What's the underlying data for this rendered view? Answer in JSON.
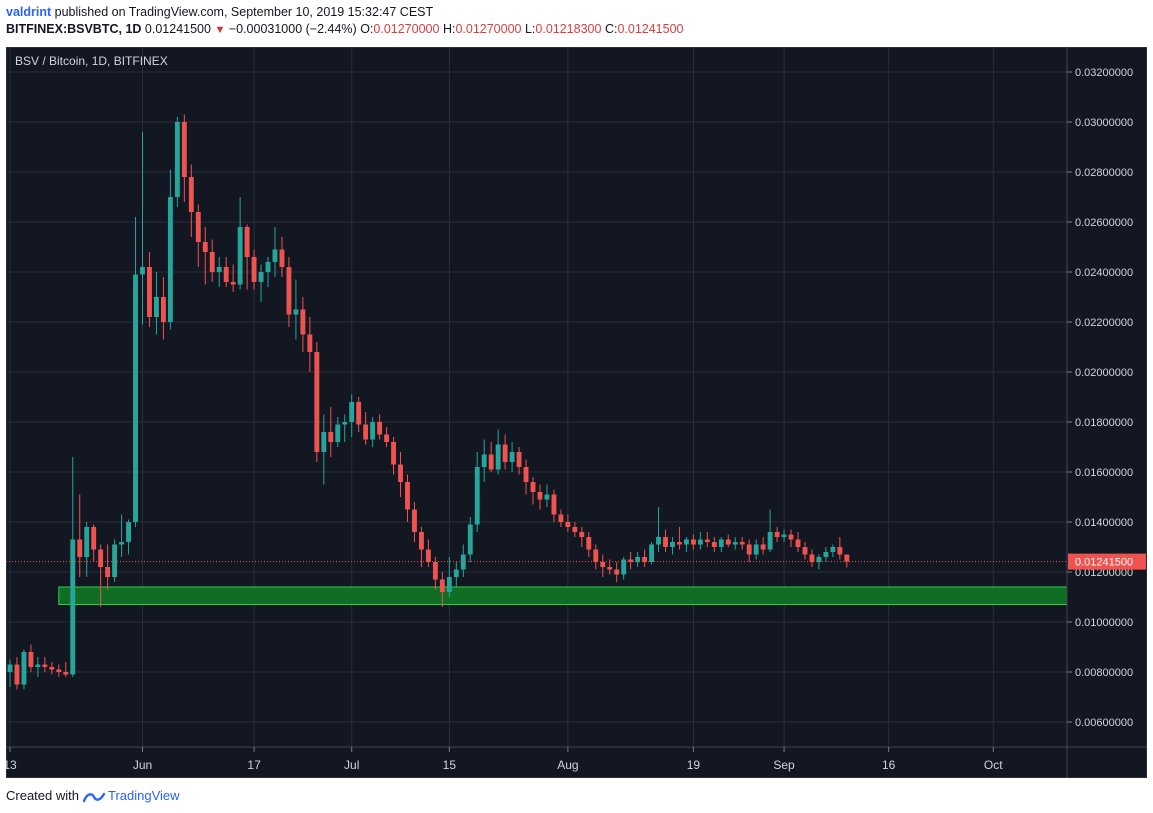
{
  "header": {
    "username": "valdrint",
    "published_text": "published on TradingView.com, September 10, 2019 15:32:47 CEST",
    "symbol": "BITFINEX:BSVBTC, 1D",
    "last": "0.01241500",
    "change": "−0.00031000 (−2.44%)",
    "o_label": "O:",
    "o_value": "0.01270000",
    "h_label": "H:",
    "h_value": "0.01270000",
    "l_label": "L:",
    "l_value": "0.01218300",
    "c_label": "C:",
    "c_value": "0.01241500"
  },
  "footer": {
    "created_with": "Created with",
    "brand": "TradingView"
  },
  "chart_data": {
    "type": "candlestick",
    "title": "BSV / Bitcoin, 1D, BITFINEX",
    "current_price_label": "0.01241500",
    "current_price": 0.012415,
    "ylim": [
      0.005,
      0.033
    ],
    "y_ticks": [
      {
        "value": 0.032,
        "label": "0.03200000"
      },
      {
        "value": 0.03,
        "label": "0.03000000"
      },
      {
        "value": 0.028,
        "label": "0.02800000"
      },
      {
        "value": 0.026,
        "label": "0.02600000"
      },
      {
        "value": 0.024,
        "label": "0.02400000"
      },
      {
        "value": 0.022,
        "label": "0.02200000"
      },
      {
        "value": 0.02,
        "label": "0.02000000"
      },
      {
        "value": 0.018,
        "label": "0.01800000"
      },
      {
        "value": 0.016,
        "label": "0.01600000"
      },
      {
        "value": 0.014,
        "label": "0.01400000"
      },
      {
        "value": 0.012,
        "label": "0.01200000"
      },
      {
        "value": 0.01,
        "label": "0.01000000"
      },
      {
        "value": 0.008,
        "label": "0.00800000"
      },
      {
        "value": 0.006,
        "label": "0.00600000"
      }
    ],
    "x_range": [
      "2019-05-13",
      "2019-10-11"
    ],
    "x_ticks": [
      {
        "date": "2019-05-13",
        "label": "13"
      },
      {
        "date": "2019-06-01",
        "label": "Jun"
      },
      {
        "date": "2019-06-17",
        "label": "17"
      },
      {
        "date": "2019-07-01",
        "label": "Jul"
      },
      {
        "date": "2019-07-15",
        "label": "15"
      },
      {
        "date": "2019-08-01",
        "label": "Aug"
      },
      {
        "date": "2019-08-19",
        "label": "19"
      },
      {
        "date": "2019-09-01",
        "label": "Sep"
      },
      {
        "date": "2019-09-16",
        "label": "16"
      },
      {
        "date": "2019-10-01",
        "label": "Oct"
      }
    ],
    "support_zone": {
      "from": 0.0107,
      "to": 0.0114,
      "start_date": "2019-05-20"
    },
    "series_columns": [
      "date",
      "open",
      "high",
      "low",
      "close"
    ],
    "candles": [
      [
        "2019-05-13",
        0.008,
        0.0085,
        0.0074,
        0.0083
      ],
      [
        "2019-05-14",
        0.0083,
        0.0086,
        0.0073,
        0.0075
      ],
      [
        "2019-05-15",
        0.0075,
        0.0089,
        0.0073,
        0.0088
      ],
      [
        "2019-05-16",
        0.0088,
        0.0091,
        0.008,
        0.0082
      ],
      [
        "2019-05-17",
        0.0082,
        0.0086,
        0.0078,
        0.0083
      ],
      [
        "2019-05-18",
        0.0083,
        0.0086,
        0.008,
        0.0082
      ],
      [
        "2019-05-19",
        0.0082,
        0.0084,
        0.0079,
        0.0081
      ],
      [
        "2019-05-20",
        0.0081,
        0.0083,
        0.0078,
        0.008
      ],
      [
        "2019-05-21",
        0.008,
        0.0084,
        0.0078,
        0.0079
      ],
      [
        "2019-05-22",
        0.0079,
        0.0166,
        0.0078,
        0.0133
      ],
      [
        "2019-05-23",
        0.0133,
        0.0151,
        0.0118,
        0.0126
      ],
      [
        "2019-05-24",
        0.0126,
        0.014,
        0.0118,
        0.0138
      ],
      [
        "2019-05-25",
        0.0138,
        0.0139,
        0.0124,
        0.0129
      ],
      [
        "2019-05-26",
        0.0129,
        0.0131,
        0.0106,
        0.0122
      ],
      [
        "2019-05-27",
        0.0122,
        0.0131,
        0.0113,
        0.0118
      ],
      [
        "2019-05-28",
        0.0118,
        0.0133,
        0.0116,
        0.0131
      ],
      [
        "2019-05-29",
        0.0131,
        0.0143,
        0.0126,
        0.0132
      ],
      [
        "2019-05-30",
        0.0132,
        0.0141,
        0.0127,
        0.014
      ],
      [
        "2019-05-31",
        0.014,
        0.0262,
        0.0138,
        0.0239
      ],
      [
        "2019-06-01",
        0.0239,
        0.0296,
        0.0219,
        0.0242
      ],
      [
        "2019-06-02",
        0.0242,
        0.0248,
        0.0218,
        0.0222
      ],
      [
        "2019-06-03",
        0.0222,
        0.024,
        0.0215,
        0.023
      ],
      [
        "2019-06-04",
        0.023,
        0.0238,
        0.0213,
        0.022
      ],
      [
        "2019-06-05",
        0.022,
        0.0281,
        0.0217,
        0.027
      ],
      [
        "2019-06-06",
        0.027,
        0.0302,
        0.0266,
        0.03
      ],
      [
        "2019-06-07",
        0.03,
        0.0303,
        0.0268,
        0.0278
      ],
      [
        "2019-06-08",
        0.0278,
        0.0283,
        0.0254,
        0.0264
      ],
      [
        "2019-06-09",
        0.0264,
        0.0267,
        0.0242,
        0.0252
      ],
      [
        "2019-06-10",
        0.0252,
        0.0258,
        0.0235,
        0.0248
      ],
      [
        "2019-06-11",
        0.0248,
        0.0253,
        0.0236,
        0.024
      ],
      [
        "2019-06-12",
        0.024,
        0.0246,
        0.0234,
        0.0242
      ],
      [
        "2019-06-13",
        0.0242,
        0.0246,
        0.0234,
        0.0236
      ],
      [
        "2019-06-14",
        0.0236,
        0.0243,
        0.0232,
        0.0235
      ],
      [
        "2019-06-15",
        0.0235,
        0.027,
        0.0233,
        0.0258
      ],
      [
        "2019-06-16",
        0.0258,
        0.0259,
        0.0233,
        0.0246
      ],
      [
        "2019-06-17",
        0.0246,
        0.0249,
        0.0233,
        0.0236
      ],
      [
        "2019-06-18",
        0.0236,
        0.0243,
        0.0228,
        0.024
      ],
      [
        "2019-06-19",
        0.024,
        0.0246,
        0.0234,
        0.0244
      ],
      [
        "2019-06-20",
        0.0244,
        0.0258,
        0.0238,
        0.0249
      ],
      [
        "2019-06-21",
        0.0249,
        0.0254,
        0.0238,
        0.0242
      ],
      [
        "2019-06-22",
        0.0242,
        0.0246,
        0.0218,
        0.0223
      ],
      [
        "2019-06-23",
        0.0223,
        0.0237,
        0.0213,
        0.0225
      ],
      [
        "2019-06-24",
        0.0225,
        0.023,
        0.0208,
        0.0215
      ],
      [
        "2019-06-25",
        0.0215,
        0.0222,
        0.02,
        0.0208
      ],
      [
        "2019-06-26",
        0.0208,
        0.0212,
        0.0164,
        0.0168
      ],
      [
        "2019-06-27",
        0.0168,
        0.0183,
        0.0155,
        0.0176
      ],
      [
        "2019-06-28",
        0.0176,
        0.0186,
        0.0166,
        0.0172
      ],
      [
        "2019-06-29",
        0.0172,
        0.0182,
        0.017,
        0.0179
      ],
      [
        "2019-06-30",
        0.0179,
        0.0183,
        0.0172,
        0.018
      ],
      [
        "2019-07-01",
        0.018,
        0.0191,
        0.0174,
        0.0188
      ],
      [
        "2019-07-02",
        0.0188,
        0.019,
        0.0176,
        0.0179
      ],
      [
        "2019-07-03",
        0.0179,
        0.0184,
        0.0171,
        0.0173
      ],
      [
        "2019-07-04",
        0.0173,
        0.0182,
        0.017,
        0.018
      ],
      [
        "2019-07-05",
        0.018,
        0.0183,
        0.0173,
        0.0175
      ],
      [
        "2019-07-06",
        0.0175,
        0.0178,
        0.017,
        0.0172
      ],
      [
        "2019-07-07",
        0.0172,
        0.0174,
        0.0159,
        0.0163
      ],
      [
        "2019-07-08",
        0.0163,
        0.0168,
        0.015,
        0.0156
      ],
      [
        "2019-07-09",
        0.0156,
        0.0159,
        0.014,
        0.0145
      ],
      [
        "2019-07-10",
        0.0145,
        0.0148,
        0.0132,
        0.0136
      ],
      [
        "2019-07-11",
        0.0136,
        0.0138,
        0.0122,
        0.0129
      ],
      [
        "2019-07-12",
        0.0129,
        0.0133,
        0.0122,
        0.0124
      ],
      [
        "2019-07-13",
        0.0124,
        0.0126,
        0.0113,
        0.0117
      ],
      [
        "2019-07-14",
        0.0117,
        0.012,
        0.0106,
        0.0112
      ],
      [
        "2019-07-15",
        0.0112,
        0.0126,
        0.011,
        0.0118
      ],
      [
        "2019-07-16",
        0.0118,
        0.0124,
        0.0114,
        0.0121
      ],
      [
        "2019-07-17",
        0.0121,
        0.0131,
        0.0118,
        0.0127
      ],
      [
        "2019-07-18",
        0.0127,
        0.0142,
        0.0124,
        0.0139
      ],
      [
        "2019-07-19",
        0.0139,
        0.0168,
        0.0136,
        0.0162
      ],
      [
        "2019-07-20",
        0.0162,
        0.0173,
        0.0156,
        0.0167
      ],
      [
        "2019-07-21",
        0.0167,
        0.0172,
        0.016,
        0.0161
      ],
      [
        "2019-07-22",
        0.0161,
        0.0177,
        0.0159,
        0.0171
      ],
      [
        "2019-07-23",
        0.0171,
        0.0175,
        0.0161,
        0.0164
      ],
      [
        "2019-07-24",
        0.0164,
        0.0172,
        0.016,
        0.0168
      ],
      [
        "2019-07-25",
        0.0168,
        0.017,
        0.0159,
        0.0162
      ],
      [
        "2019-07-26",
        0.0162,
        0.0165,
        0.0151,
        0.0156
      ],
      [
        "2019-07-27",
        0.0156,
        0.0158,
        0.0147,
        0.0152
      ],
      [
        "2019-07-28",
        0.0152,
        0.0155,
        0.0145,
        0.0149
      ],
      [
        "2019-07-29",
        0.0149,
        0.0155,
        0.0146,
        0.0151
      ],
      [
        "2019-07-30",
        0.0151,
        0.0153,
        0.014,
        0.0143
      ],
      [
        "2019-07-31",
        0.0143,
        0.0145,
        0.0138,
        0.014
      ],
      [
        "2019-08-01",
        0.014,
        0.0143,
        0.0136,
        0.0138
      ],
      [
        "2019-08-02",
        0.0138,
        0.014,
        0.0134,
        0.0136
      ],
      [
        "2019-08-03",
        0.0136,
        0.0138,
        0.013,
        0.0134
      ],
      [
        "2019-08-04",
        0.0134,
        0.0136,
        0.0126,
        0.0129
      ],
      [
        "2019-08-05",
        0.0129,
        0.0131,
        0.0121,
        0.0124
      ],
      [
        "2019-08-06",
        0.0124,
        0.0127,
        0.0118,
        0.0122
      ],
      [
        "2019-08-07",
        0.0122,
        0.0125,
        0.0119,
        0.0121
      ],
      [
        "2019-08-08",
        0.0121,
        0.0124,
        0.0116,
        0.0119
      ],
      [
        "2019-08-09",
        0.0119,
        0.0126,
        0.0117,
        0.0125
      ],
      [
        "2019-08-10",
        0.0125,
        0.0128,
        0.0121,
        0.0124
      ],
      [
        "2019-08-11",
        0.0124,
        0.0128,
        0.0122,
        0.0126
      ],
      [
        "2019-08-12",
        0.0126,
        0.0129,
        0.0122,
        0.0124
      ],
      [
        "2019-08-13",
        0.0124,
        0.0132,
        0.0123,
        0.0131
      ],
      [
        "2019-08-14",
        0.0131,
        0.0146,
        0.0128,
        0.0134
      ],
      [
        "2019-08-15",
        0.0134,
        0.0137,
        0.0128,
        0.013
      ],
      [
        "2019-08-16",
        0.013,
        0.0134,
        0.0127,
        0.0132
      ],
      [
        "2019-08-17",
        0.0132,
        0.0138,
        0.0129,
        0.0131
      ],
      [
        "2019-08-18",
        0.0131,
        0.0134,
        0.0128,
        0.0133
      ],
      [
        "2019-08-19",
        0.0133,
        0.0135,
        0.0129,
        0.0131
      ],
      [
        "2019-08-20",
        0.0131,
        0.0136,
        0.0129,
        0.0133
      ],
      [
        "2019-08-21",
        0.0133,
        0.0136,
        0.013,
        0.0132
      ],
      [
        "2019-08-22",
        0.0132,
        0.0134,
        0.0128,
        0.013
      ],
      [
        "2019-08-23",
        0.013,
        0.0134,
        0.0128,
        0.0133
      ],
      [
        "2019-08-24",
        0.0133,
        0.0135,
        0.013,
        0.0131
      ],
      [
        "2019-08-25",
        0.0131,
        0.0134,
        0.0129,
        0.0132
      ],
      [
        "2019-08-26",
        0.0132,
        0.0134,
        0.0129,
        0.0131
      ],
      [
        "2019-08-27",
        0.0131,
        0.0133,
        0.0124,
        0.0127
      ],
      [
        "2019-08-28",
        0.0127,
        0.0133,
        0.0125,
        0.0131
      ],
      [
        "2019-08-29",
        0.0131,
        0.0134,
        0.0127,
        0.0129
      ],
      [
        "2019-08-30",
        0.0129,
        0.0145,
        0.0128,
        0.0136
      ],
      [
        "2019-08-31",
        0.0136,
        0.0138,
        0.0132,
        0.0134
      ],
      [
        "2019-09-01",
        0.0134,
        0.0137,
        0.0132,
        0.0135
      ],
      [
        "2019-09-02",
        0.0135,
        0.0137,
        0.013,
        0.0133
      ],
      [
        "2019-09-03",
        0.0133,
        0.0136,
        0.0128,
        0.013
      ],
      [
        "2019-09-04",
        0.013,
        0.0132,
        0.0125,
        0.0127
      ],
      [
        "2019-09-05",
        0.0127,
        0.0129,
        0.0122,
        0.0124
      ],
      [
        "2019-09-06",
        0.0124,
        0.0127,
        0.0121,
        0.0126
      ],
      [
        "2019-09-07",
        0.0126,
        0.013,
        0.0124,
        0.0128
      ],
      [
        "2019-09-08",
        0.0128,
        0.0131,
        0.0126,
        0.013
      ],
      [
        "2019-09-09",
        0.013,
        0.0134,
        0.0125,
        0.0127
      ],
      [
        "2019-09-10",
        0.0127,
        0.0127,
        0.01218,
        0.012415
      ]
    ]
  },
  "colors": {
    "background": "#131722",
    "grid": "#2a2e39",
    "up": "#26a69a",
    "down": "#ef5350",
    "zone_fill": "#0f6e23",
    "zone_border": "#2fd149",
    "price_line": "#ef5350",
    "axis_text": "#d1d4dc"
  }
}
